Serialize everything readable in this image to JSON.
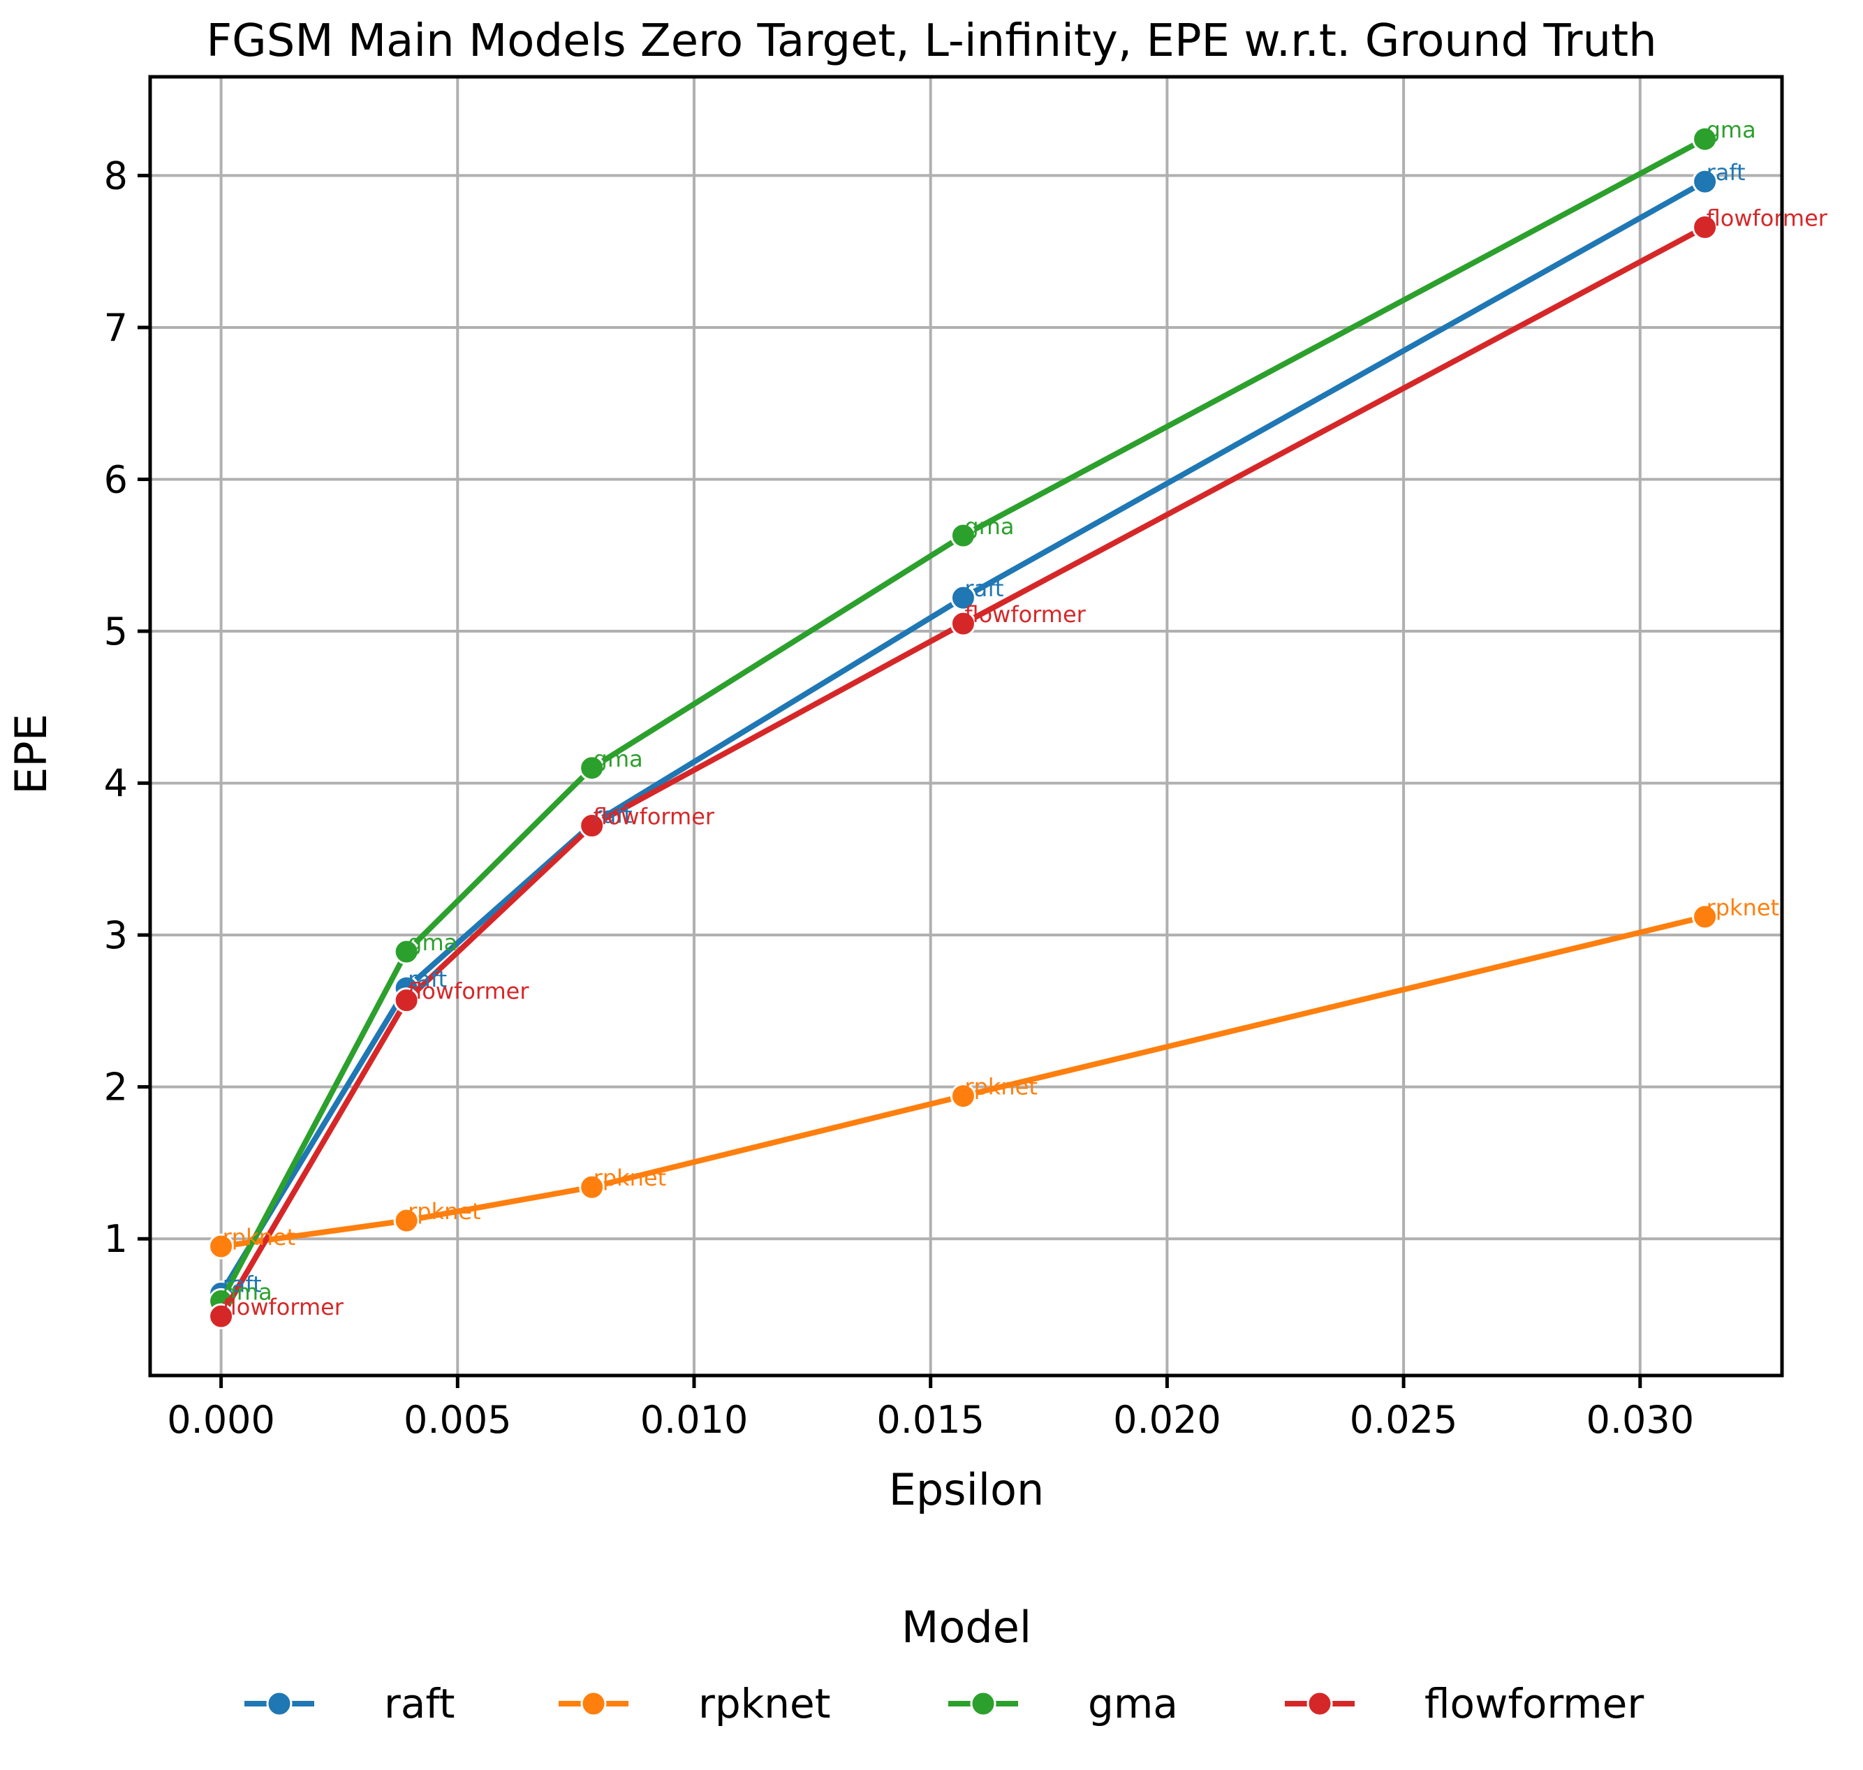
{
  "chart_data": {
    "type": "line",
    "title": "FGSM Main Models Zero Target, L-infinity, EPE w.r.t. Ground Truth",
    "xlabel": "Epsilon",
    "ylabel": "EPE",
    "x": [
      0.0,
      0.00392,
      0.00784,
      0.01569,
      0.03137
    ],
    "xlim": [
      -0.0015,
      0.033
    ],
    "ylim": [
      0.1,
      8.65
    ],
    "xticks": [
      0.0,
      0.005,
      0.01,
      0.015,
      0.02,
      0.025,
      0.03
    ],
    "xtick_labels": [
      "0.000",
      "0.005",
      "0.010",
      "0.015",
      "0.020",
      "0.025",
      "0.030"
    ],
    "yticks": [
      1,
      2,
      3,
      4,
      5,
      6,
      7,
      8
    ],
    "ytick_labels": [
      "1",
      "2",
      "3",
      "4",
      "5",
      "6",
      "7",
      "8"
    ],
    "grid": true,
    "legend": {
      "title": "Model",
      "placement": "below-center",
      "entries": [
        "raft",
        "rpknet",
        "gma",
        "flowformer"
      ]
    },
    "series": [
      {
        "name": "raft",
        "color": "#1f77b4",
        "values": [
          0.64,
          2.65,
          3.73,
          5.22,
          7.96
        ]
      },
      {
        "name": "rpknet",
        "color": "#ff7f0e",
        "values": [
          0.95,
          1.12,
          1.34,
          1.94,
          3.12
        ]
      },
      {
        "name": "gma",
        "color": "#2ca02c",
        "values": [
          0.59,
          2.89,
          4.1,
          5.63,
          8.24
        ]
      },
      {
        "name": "flowformer",
        "color": "#d62728",
        "values": [
          0.49,
          2.57,
          3.72,
          5.05,
          7.66
        ]
      }
    ]
  }
}
